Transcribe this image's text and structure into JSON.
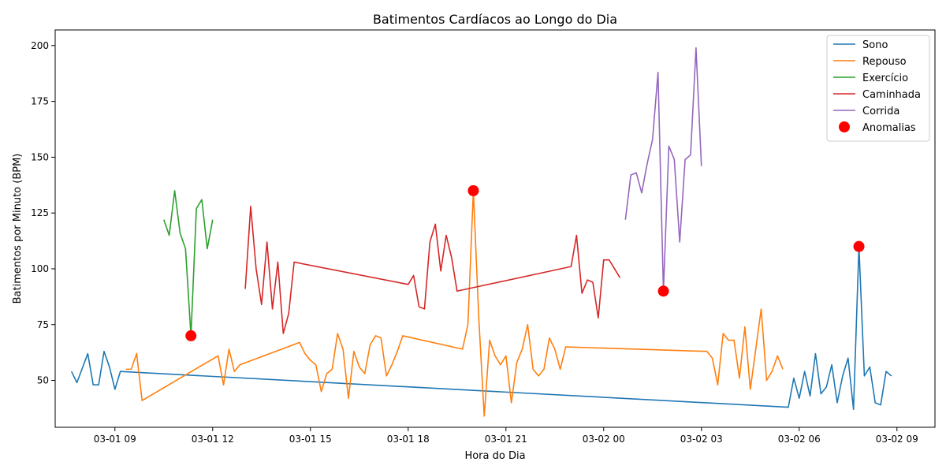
{
  "chart_data": {
    "type": "line",
    "title": "Batimentos Cardíacos ao Longo do Dia",
    "xlabel": "Hora do Dia",
    "ylabel": "Batimentos por Minuto (BPM)",
    "xlim": [
      "2024-03-01T07:10",
      "2024-03-02T10:10"
    ],
    "ylim": [
      29,
      207
    ],
    "x_ticks": [
      {
        "x": "2024-03-01T09:00",
        "label": "03-01 09"
      },
      {
        "x": "2024-03-01T12:00",
        "label": "03-01 12"
      },
      {
        "x": "2024-03-01T15:00",
        "label": "03-01 15"
      },
      {
        "x": "2024-03-01T18:00",
        "label": "03-01 18"
      },
      {
        "x": "2024-03-01T21:00",
        "label": "03-01 21"
      },
      {
        "x": "2024-03-02T00:00",
        "label": "03-02 00"
      },
      {
        "x": "2024-03-02T03:00",
        "label": "03-02 03"
      },
      {
        "x": "2024-03-02T06:00",
        "label": "03-02 06"
      },
      {
        "x": "2024-03-02T09:00",
        "label": "03-02 09"
      }
    ],
    "y_ticks": [
      50,
      75,
      100,
      125,
      150,
      175,
      200
    ],
    "grid": false,
    "legend_position": "top-right",
    "series": [
      {
        "name": "Sono",
        "color": "#1f77b4",
        "points": [
          [
            "2024-03-01T07:40",
            54
          ],
          [
            "2024-03-01T07:50",
            49
          ],
          [
            "2024-03-01T08:10",
            62
          ],
          [
            "2024-03-01T08:20",
            48
          ],
          [
            "2024-03-01T08:30",
            48
          ],
          [
            "2024-03-01T08:40",
            63
          ],
          [
            "2024-03-01T08:50",
            56
          ],
          [
            "2024-03-01T09:00",
            46
          ],
          [
            "2024-03-01T09:10",
            54
          ],
          [
            "2024-03-02T05:40",
            38
          ],
          [
            "2024-03-02T05:50",
            51
          ],
          [
            "2024-03-02T06:00",
            42
          ],
          [
            "2024-03-02T06:10",
            54
          ],
          [
            "2024-03-02T06:20",
            43
          ],
          [
            "2024-03-02T06:30",
            62
          ],
          [
            "2024-03-02T06:40",
            44
          ],
          [
            "2024-03-02T06:50",
            47
          ],
          [
            "2024-03-02T07:00",
            57
          ],
          [
            "2024-03-02T07:10",
            40
          ],
          [
            "2024-03-02T07:20",
            52
          ],
          [
            "2024-03-02T07:30",
            60
          ],
          [
            "2024-03-02T07:40",
            37
          ],
          [
            "2024-03-02T07:50",
            110
          ],
          [
            "2024-03-02T08:00",
            52
          ],
          [
            "2024-03-02T08:10",
            56
          ],
          [
            "2024-03-02T08:20",
            40
          ],
          [
            "2024-03-02T08:30",
            39
          ],
          [
            "2024-03-02T08:40",
            54
          ],
          [
            "2024-03-02T08:50",
            52
          ]
        ]
      },
      {
        "name": "Repouso",
        "color": "#ff7f0e",
        "points": [
          [
            "2024-03-01T09:20",
            55
          ],
          [
            "2024-03-01T09:30",
            55
          ],
          [
            "2024-03-01T09:40",
            62
          ],
          [
            "2024-03-01T09:50",
            41
          ],
          [
            "2024-03-01T12:10",
            61
          ],
          [
            "2024-03-01T12:20",
            48
          ],
          [
            "2024-03-01T12:30",
            64
          ],
          [
            "2024-03-01T12:40",
            54
          ],
          [
            "2024-03-01T12:50",
            57
          ],
          [
            "2024-03-01T14:40",
            67
          ],
          [
            "2024-03-01T14:50",
            62
          ],
          [
            "2024-03-01T15:00",
            59
          ],
          [
            "2024-03-01T15:10",
            57
          ],
          [
            "2024-03-01T15:20",
            45
          ],
          [
            "2024-03-01T15:30",
            53
          ],
          [
            "2024-03-01T15:40",
            55
          ],
          [
            "2024-03-01T15:50",
            71
          ],
          [
            "2024-03-01T16:00",
            64
          ],
          [
            "2024-03-01T16:10",
            42
          ],
          [
            "2024-03-01T16:20",
            63
          ],
          [
            "2024-03-01T16:30",
            56
          ],
          [
            "2024-03-01T16:40",
            53
          ],
          [
            "2024-03-01T16:50",
            66
          ],
          [
            "2024-03-01T17:00",
            70
          ],
          [
            "2024-03-01T17:10",
            69
          ],
          [
            "2024-03-01T17:20",
            52
          ],
          [
            "2024-03-01T17:30",
            57
          ],
          [
            "2024-03-01T17:40",
            63
          ],
          [
            "2024-03-01T17:50",
            70
          ],
          [
            "2024-03-01T19:40",
            64
          ],
          [
            "2024-03-01T19:50",
            75
          ],
          [
            "2024-03-01T20:00",
            135
          ],
          [
            "2024-03-01T20:10",
            78
          ],
          [
            "2024-03-01T20:20",
            34
          ],
          [
            "2024-03-01T20:30",
            68
          ],
          [
            "2024-03-01T20:40",
            61
          ],
          [
            "2024-03-01T20:50",
            57
          ],
          [
            "2024-03-01T21:00",
            61
          ],
          [
            "2024-03-01T21:10",
            40
          ],
          [
            "2024-03-01T21:20",
            58
          ],
          [
            "2024-03-01T21:30",
            64
          ],
          [
            "2024-03-01T21:40",
            75
          ],
          [
            "2024-03-01T21:50",
            55
          ],
          [
            "2024-03-01T22:00",
            52
          ],
          [
            "2024-03-01T22:10",
            55
          ],
          [
            "2024-03-01T22:20",
            69
          ],
          [
            "2024-03-01T22:30",
            64
          ],
          [
            "2024-03-01T22:40",
            55
          ],
          [
            "2024-03-01T22:50",
            65
          ],
          [
            "2024-03-02T03:10",
            63
          ],
          [
            "2024-03-02T03:20",
            60
          ],
          [
            "2024-03-02T03:30",
            48
          ],
          [
            "2024-03-02T03:40",
            71
          ],
          [
            "2024-03-02T03:50",
            68
          ],
          [
            "2024-03-02T04:00",
            68
          ],
          [
            "2024-03-02T04:10",
            51
          ],
          [
            "2024-03-02T04:20",
            74
          ],
          [
            "2024-03-02T04:30",
            46
          ],
          [
            "2024-03-02T04:40",
            64
          ],
          [
            "2024-03-02T04:50",
            82
          ],
          [
            "2024-03-02T05:00",
            50
          ],
          [
            "2024-03-02T05:10",
            54
          ],
          [
            "2024-03-02T05:20",
            61
          ],
          [
            "2024-03-02T05:30",
            55
          ]
        ]
      },
      {
        "name": "Exercício",
        "color": "#2ca02c",
        "points": [
          [
            "2024-03-01T10:30",
            122
          ],
          [
            "2024-03-01T10:40",
            115
          ],
          [
            "2024-03-01T10:50",
            135
          ],
          [
            "2024-03-01T11:00",
            116
          ],
          [
            "2024-03-01T11:10",
            109
          ],
          [
            "2024-03-01T11:20",
            70
          ],
          [
            "2024-03-01T11:30",
            127
          ],
          [
            "2024-03-01T11:40",
            131
          ],
          [
            "2024-03-01T11:50",
            109
          ],
          [
            "2024-03-01T12:00",
            122
          ]
        ]
      },
      {
        "name": "Caminhada",
        "color": "#d62728",
        "points": [
          [
            "2024-03-01T13:00",
            91
          ],
          [
            "2024-03-01T13:10",
            128
          ],
          [
            "2024-03-01T13:20",
            100
          ],
          [
            "2024-03-01T13:30",
            84
          ],
          [
            "2024-03-01T13:40",
            112
          ],
          [
            "2024-03-01T13:50",
            82
          ],
          [
            "2024-03-01T14:00",
            103
          ],
          [
            "2024-03-01T14:10",
            71
          ],
          [
            "2024-03-01T14:20",
            80
          ],
          [
            "2024-03-01T14:30",
            103
          ],
          [
            "2024-03-01T18:00",
            93
          ],
          [
            "2024-03-01T18:10",
            97
          ],
          [
            "2024-03-01T18:20",
            83
          ],
          [
            "2024-03-01T18:30",
            82
          ],
          [
            "2024-03-01T18:40",
            112
          ],
          [
            "2024-03-01T18:50",
            120
          ],
          [
            "2024-03-01T19:00",
            99
          ],
          [
            "2024-03-01T19:10",
            115
          ],
          [
            "2024-03-01T19:20",
            105
          ],
          [
            "2024-03-01T19:30",
            90
          ],
          [
            "2024-03-01T23:00",
            101
          ],
          [
            "2024-03-01T23:10",
            115
          ],
          [
            "2024-03-01T23:20",
            89
          ],
          [
            "2024-03-01T23:30",
            95
          ],
          [
            "2024-03-01T23:40",
            94
          ],
          [
            "2024-03-01T23:50",
            78
          ],
          [
            "2024-03-02T00:00",
            104
          ],
          [
            "2024-03-02T00:10",
            104
          ],
          [
            "2024-03-02T00:20",
            100
          ],
          [
            "2024-03-02T00:30",
            96
          ]
        ]
      },
      {
        "name": "Corrida",
        "color": "#9467bd",
        "points": [
          [
            "2024-03-02T00:40",
            122
          ],
          [
            "2024-03-02T00:50",
            142
          ],
          [
            "2024-03-02T01:00",
            143
          ],
          [
            "2024-03-02T01:10",
            134
          ],
          [
            "2024-03-02T01:20",
            147
          ],
          [
            "2024-03-02T01:30",
            158
          ],
          [
            "2024-03-02T01:40",
            188
          ],
          [
            "2024-03-02T01:50",
            90
          ],
          [
            "2024-03-02T02:00",
            155
          ],
          [
            "2024-03-02T02:10",
            149
          ],
          [
            "2024-03-02T02:20",
            112
          ],
          [
            "2024-03-02T02:30",
            149
          ],
          [
            "2024-03-02T02:40",
            151
          ],
          [
            "2024-03-02T02:50",
            199
          ],
          [
            "2024-03-02T03:00",
            146
          ]
        ]
      }
    ],
    "anomalies": {
      "name": "Anomalias",
      "color": "#ff0000",
      "points": [
        [
          "2024-03-01T11:20",
          70
        ],
        [
          "2024-03-01T20:00",
          135
        ],
        [
          "2024-03-02T01:50",
          90
        ],
        [
          "2024-03-02T07:50",
          110
        ]
      ]
    }
  }
}
